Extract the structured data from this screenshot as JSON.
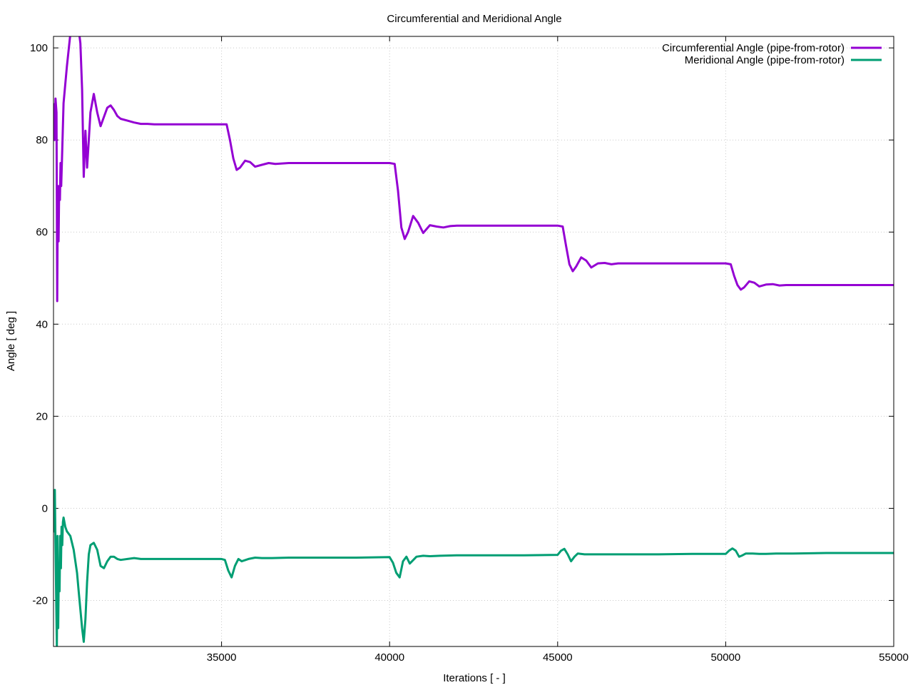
{
  "chart_data": {
    "type": "line",
    "title": "Circumferential and Meridional Angle",
    "xlabel": "Iterations [ - ]",
    "ylabel": "Angle [ deg ]",
    "xlim": [
      30000,
      55000
    ],
    "ylim": [
      -30,
      102.5
    ],
    "xticks": [
      35000,
      40000,
      45000,
      50000,
      55000
    ],
    "xtick_labels": [
      "35000",
      "40000",
      "45000",
      "50000",
      "55000"
    ],
    "yticks": [
      -20,
      0,
      20,
      40,
      60,
      80,
      100
    ],
    "ytick_labels": [
      "-20",
      "0",
      "20",
      "40",
      "60",
      "80",
      "100"
    ],
    "grid": true,
    "legend_position": "top-right",
    "series": [
      {
        "name": "Circumferential Angle (pipe-from-rotor)",
        "color": "#9400d3",
        "x": [
          30000,
          30030,
          30060,
          30090,
          30110,
          30130,
          30150,
          30170,
          30190,
          30210,
          30230,
          30260,
          30300,
          30400,
          30500,
          30600,
          30700,
          30800,
          30850,
          30900,
          30950,
          31000,
          31050,
          31100,
          31200,
          31300,
          31400,
          31500,
          31600,
          31700,
          31800,
          31900,
          32000,
          32200,
          32400,
          32600,
          32800,
          33000,
          33500,
          34000,
          34500,
          35000,
          35150,
          35250,
          35350,
          35450,
          35550,
          35700,
          35850,
          36000,
          36200,
          36400,
          36600,
          36800,
          37000,
          38000,
          39000,
          40000,
          40150,
          40250,
          40350,
          40450,
          40550,
          40700,
          40850,
          41000,
          41200,
          41400,
          41600,
          41800,
          42000,
          43000,
          44000,
          45000,
          45150,
          45250,
          45350,
          45450,
          45550,
          45700,
          45850,
          46000,
          46200,
          46400,
          46600,
          46800,
          47000,
          48000,
          49000,
          50000,
          50150,
          50250,
          50350,
          50450,
          50550,
          50700,
          50850,
          51000,
          51200,
          51400,
          51600,
          51800,
          52000,
          53000,
          54000,
          55000
        ],
        "y": [
          88,
          80,
          89,
          86,
          45,
          70,
          58,
          70,
          67,
          75,
          70,
          78,
          88,
          96,
          103,
          108,
          107,
          101,
          91,
          72,
          82,
          74,
          80,
          86,
          90,
          86,
          83,
          85,
          87,
          87.5,
          86.5,
          85.2,
          84.6,
          84.2,
          83.8,
          83.5,
          83.5,
          83.4,
          83.4,
          83.4,
          83.4,
          83.4,
          83.4,
          80,
          76,
          73.5,
          74,
          75.5,
          75.2,
          74.2,
          74.6,
          75.0,
          74.8,
          74.9,
          75.0,
          75.0,
          75.0,
          75.0,
          74.8,
          69,
          61,
          58.5,
          60,
          63.5,
          62,
          59.8,
          61.5,
          61.2,
          61.0,
          61.3,
          61.4,
          61.4,
          61.4,
          61.4,
          61.2,
          57,
          53,
          51.5,
          52.5,
          54.5,
          53.8,
          52.3,
          53.2,
          53.3,
          53.0,
          53.2,
          53.2,
          53.2,
          53.2,
          53.2,
          53.0,
          50.5,
          48.5,
          47.5,
          48.0,
          49.3,
          49.0,
          48.2,
          48.6,
          48.7,
          48.4,
          48.5,
          48.5,
          48.5,
          48.5,
          48.5
        ]
      },
      {
        "name": "Meridional Angle (pipe-from-rotor)",
        "color": "#009e73",
        "x": [
          30000,
          30020,
          30040,
          30060,
          30080,
          30100,
          30120,
          30140,
          30160,
          30180,
          30200,
          30220,
          30240,
          30260,
          30280,
          30300,
          30350,
          30400,
          30500,
          30600,
          30700,
          30750,
          30800,
          30850,
          30900,
          30950,
          31000,
          31050,
          31100,
          31200,
          31300,
          31400,
          31500,
          31600,
          31700,
          31800,
          31900,
          32000,
          32200,
          32400,
          32600,
          32800,
          33000,
          34000,
          35000,
          35100,
          35200,
          35300,
          35400,
          35500,
          35600,
          35800,
          36000,
          36200,
          36500,
          37000,
          38000,
          39000,
          40000,
          40100,
          40200,
          40300,
          40400,
          40500,
          40600,
          40800,
          41000,
          41200,
          41500,
          42000,
          43000,
          44000,
          45000,
          45100,
          45200,
          45300,
          45400,
          45500,
          45600,
          45800,
          46000,
          46200,
          46500,
          47000,
          48000,
          49000,
          50000,
          50100,
          50200,
          50300,
          50400,
          50500,
          50600,
          50800,
          51000,
          51200,
          51500,
          52000,
          53000,
          54000,
          55000
        ],
        "y": [
          3,
          -5,
          4,
          -8,
          -20,
          -30,
          -6,
          -26,
          -12,
          -18,
          -6,
          -13,
          -4,
          -8,
          -3,
          -2,
          -4,
          -5,
          -6,
          -9,
          -14,
          -18,
          -22,
          -26,
          -29,
          -24,
          -16,
          -10,
          -8,
          -7.5,
          -9,
          -12.5,
          -13,
          -11.5,
          -10.5,
          -10.5,
          -11,
          -11.2,
          -11.0,
          -10.8,
          -11.0,
          -11.0,
          -11.0,
          -11.0,
          -11.0,
          -11.2,
          -13.5,
          -15,
          -12.5,
          -11,
          -11.5,
          -11.0,
          -10.7,
          -10.8,
          -10.8,
          -10.7,
          -10.7,
          -10.7,
          -10.6,
          -11.8,
          -14,
          -15,
          -11.5,
          -10.5,
          -12,
          -10.5,
          -10.3,
          -10.4,
          -10.3,
          -10.2,
          -10.2,
          -10.2,
          -10.1,
          -9.2,
          -8.8,
          -10,
          -11.5,
          -10.5,
          -9.8,
          -10.0,
          -10.0,
          -10.0,
          -10.0,
          -10.0,
          -10.0,
          -9.9,
          -9.9,
          -9.2,
          -8.7,
          -9.2,
          -10.5,
          -10.2,
          -9.8,
          -9.8,
          -9.9,
          -9.9,
          -9.8,
          -9.8,
          -9.7,
          -9.7,
          -9.7
        ]
      }
    ]
  }
}
